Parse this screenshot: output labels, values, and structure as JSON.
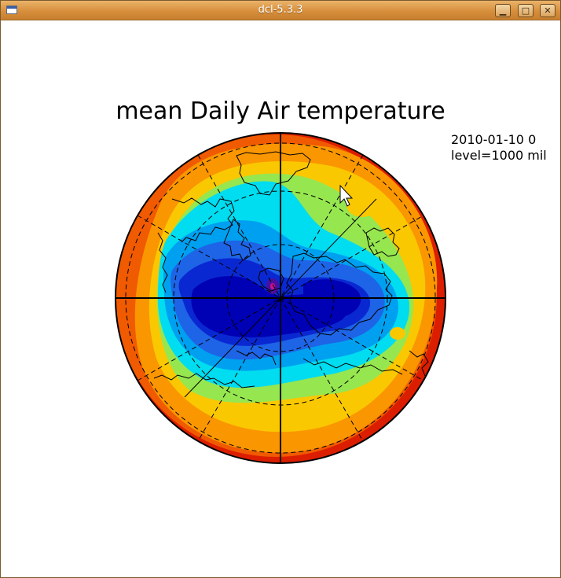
{
  "window": {
    "title": "dcl-5.3.3",
    "app_icon": "window-icon",
    "controls": {
      "minimize_label": "▁",
      "maximize_label": "□",
      "close_label": "✕"
    }
  },
  "plot": {
    "title": "mean Daily Air temperature",
    "date_label": "2010-01-10 0",
    "level_label": "level=1000 mil"
  },
  "colors": {
    "titlebar": "#d78f3c",
    "contour_levels": [
      "#0000b4",
      "#0a28d2",
      "#1e64e6",
      "#00a0f0",
      "#00dcf0",
      "#96e650",
      "#f0e628",
      "#fac800",
      "#fa9600",
      "#f05a00",
      "#dc1e00"
    ]
  }
}
